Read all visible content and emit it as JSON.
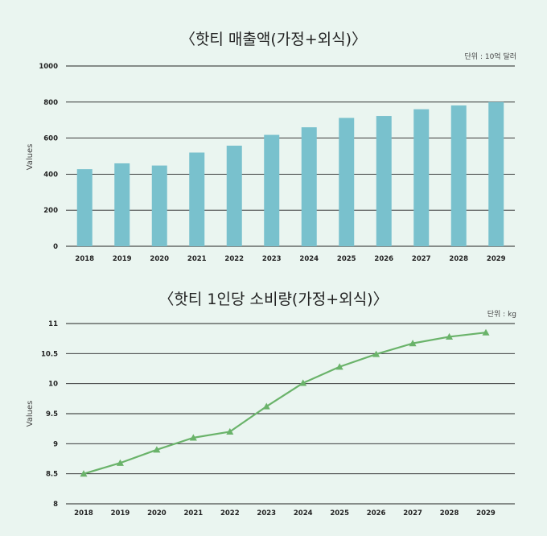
{
  "chart_data": [
    {
      "type": "bar",
      "title": "〈핫티 매출액(가정+외식)〉",
      "unit": "단위 : 10억 달러",
      "ylabel": "Values",
      "xlabel": "",
      "categories": [
        "2018",
        "2019",
        "2020",
        "2021",
        "2022",
        "2023",
        "2024",
        "2025",
        "2026",
        "2027",
        "2028",
        "2029"
      ],
      "values": [
        428,
        460,
        448,
        520,
        558,
        618,
        660,
        712,
        723,
        760,
        781,
        800
      ],
      "ylim": [
        0,
        1000
      ],
      "yticks": [
        "0",
        "200",
        "400",
        "600",
        "800",
        "1000"
      ],
      "grid": true,
      "color": "#79c1cd"
    },
    {
      "type": "line",
      "title": "〈핫티 1인당 소비량(가정+외식)〉",
      "unit": "단위 : kg",
      "ylabel": "Values",
      "xlabel": "",
      "categories": [
        "2018",
        "2019",
        "2020",
        "2021",
        "2022",
        "2023",
        "2024",
        "2025",
        "2026",
        "2027",
        "2028",
        "2029"
      ],
      "values": [
        8.5,
        8.68,
        8.9,
        9.1,
        9.2,
        9.62,
        10.01,
        10.28,
        10.49,
        10.67,
        10.78,
        10.85
      ],
      "ylim": [
        8,
        11
      ],
      "yticks": [
        "8",
        "8.5",
        "9",
        "9.5",
        "10",
        "10.5",
        "11"
      ],
      "grid": true,
      "color": "#6ab36a"
    }
  ]
}
